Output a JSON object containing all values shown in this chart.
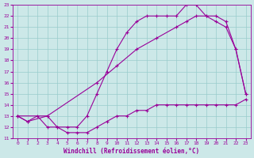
{
  "xlabel": "Windchill (Refroidissement éolien,°C)",
  "background_color": "#cce8e8",
  "line_color": "#990099",
  "grid_color": "#99cccc",
  "xlim": [
    -0.5,
    23.5
  ],
  "ylim": [
    11,
    23
  ],
  "yticks": [
    11,
    12,
    13,
    14,
    15,
    16,
    17,
    18,
    19,
    20,
    21,
    22,
    23
  ],
  "xticks": [
    0,
    1,
    2,
    3,
    4,
    5,
    6,
    7,
    8,
    9,
    10,
    11,
    12,
    13,
    14,
    15,
    16,
    17,
    18,
    19,
    20,
    21,
    22,
    23
  ],
  "line1_x": [
    0,
    1,
    2,
    3,
    4,
    5,
    6,
    7,
    8,
    9,
    10,
    11,
    12,
    13,
    14,
    15,
    16,
    17,
    18,
    19,
    20,
    21,
    22,
    23
  ],
  "line1_y": [
    13,
    12.5,
    13,
    12,
    12,
    11.5,
    11.5,
    11.5,
    12,
    12.5,
    13,
    13,
    13.5,
    13.5,
    14,
    14,
    14,
    14,
    14,
    14,
    14,
    14,
    14,
    14.5
  ],
  "line2_x": [
    0,
    1,
    3,
    4,
    5,
    6,
    7,
    8,
    9,
    10,
    11,
    12,
    13,
    14,
    15,
    16,
    17,
    18,
    19,
    20,
    21,
    22,
    23
  ],
  "line2_y": [
    13,
    12.5,
    13,
    12,
    12,
    12,
    13,
    15,
    17,
    19,
    20.5,
    21.5,
    22,
    22,
    22,
    22,
    23,
    23,
    22,
    21.5,
    21,
    19,
    15
  ],
  "line3_x": [
    0,
    3,
    8,
    10,
    12,
    14,
    16,
    17,
    18,
    19,
    20,
    21,
    22,
    23
  ],
  "line3_y": [
    13,
    13,
    16,
    17.5,
    19,
    20,
    21,
    21.5,
    22,
    22,
    22,
    21.5,
    19,
    15
  ]
}
